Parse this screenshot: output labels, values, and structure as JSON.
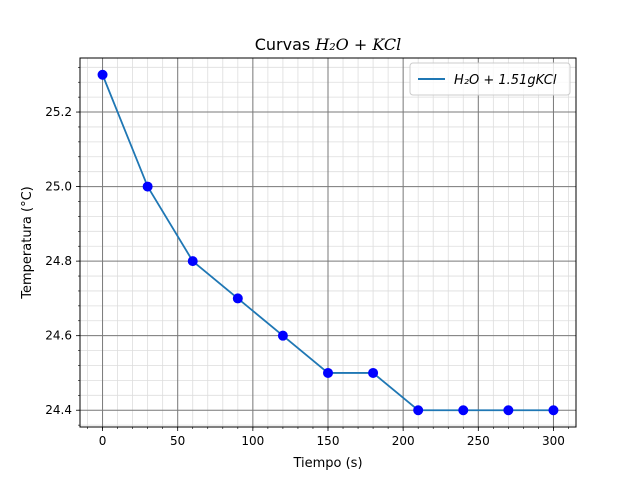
{
  "chart_data": {
    "type": "line",
    "title_plain": "Curvas ",
    "title_math": "H₂O + KCl",
    "xlabel": "Tiempo (s)",
    "ylabel": "Temperatura (°C)",
    "xlim": [
      -15,
      315
    ],
    "ylim": [
      24.355,
      25.345
    ],
    "x_ticks": [
      0,
      50,
      100,
      150,
      200,
      250,
      300
    ],
    "y_ticks": [
      24.4,
      24.6,
      24.8,
      25.0,
      25.2
    ],
    "x_tick_labels": [
      "0",
      "50",
      "100",
      "150",
      "200",
      "250",
      "300"
    ],
    "y_tick_labels": [
      "24.4",
      "24.6",
      "24.8",
      "25.0",
      "25.2"
    ],
    "x_minor_step": 10,
    "y_minor_step": 0.04,
    "grid": true,
    "legend_position": "top-right",
    "series": [
      {
        "name": "H₂O + 1.51gKCl",
        "line_color": "#1f77b4",
        "marker_color": "#0000ff",
        "x": [
          0,
          30,
          60,
          90,
          120,
          150,
          180,
          210,
          240,
          270,
          300
        ],
        "y": [
          25.3,
          25.0,
          24.8,
          24.7,
          24.6,
          24.5,
          24.5,
          24.4,
          24.4,
          24.4,
          24.4
        ]
      }
    ]
  }
}
